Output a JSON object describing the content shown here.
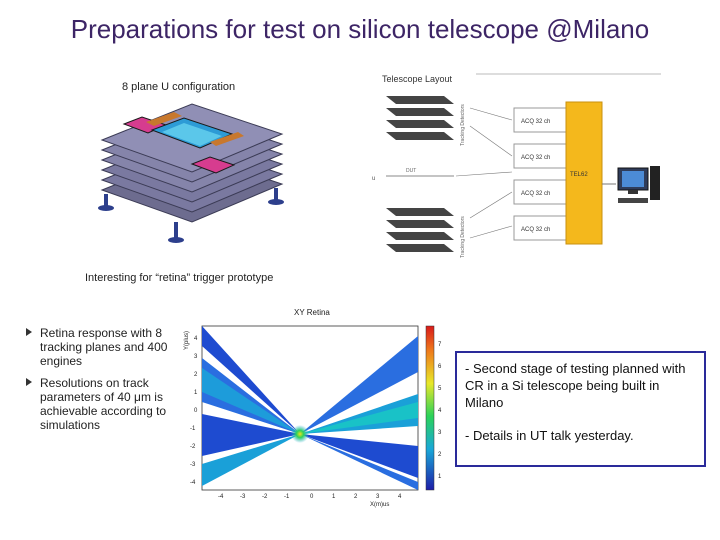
{
  "slide": {
    "title": "Preparations for test on silicon telescope @Milano"
  },
  "figure_u_config": {
    "label": "8 plane U configuration",
    "caption": "Interesting for “retina” trigger prototype"
  },
  "telescope_layout": {
    "title": "Telescope Layout",
    "acq_labels": [
      "ACQ 32 ch",
      "ACQ 32 ch",
      "ACQ 32 ch",
      "ACQ 32 ch"
    ],
    "board_label": "TEL62",
    "dut_label": "DUT",
    "plane_letters": [
      "d",
      "u",
      "d",
      "u",
      "d",
      "u",
      "d",
      "u"
    ],
    "side_label_upper": "Tracking Detectors",
    "side_label_lower": "Tracking Detectors",
    "board_color": "#f4b81c",
    "side_letter": "u"
  },
  "bullets": [
    "Retina response with 8 tracking planes and 400 engines",
    "Resolutions on track parameters of 40 μm is achievable according to simulations"
  ],
  "retina_plot": {
    "title": "XY Retina",
    "xlabel": "X(m)us",
    "ylabel": "Y(plus)",
    "x_ticks": [
      "-4",
      "-3",
      "-2",
      "-1",
      "0",
      "1",
      "2",
      "3",
      "4"
    ],
    "y_ticks": [
      "4",
      "3",
      "2",
      "1",
      "0",
      "-1",
      "-2",
      "-3",
      "-4"
    ],
    "colorbar_ticks": [
      "7",
      "6",
      "5",
      "4",
      "3",
      "2",
      "1"
    ]
  },
  "note": {
    "line1": "- Second stage of testing planned with CR in a Si telescope being built in Milano",
    "line2": "- Details in UT talk yesterday."
  }
}
